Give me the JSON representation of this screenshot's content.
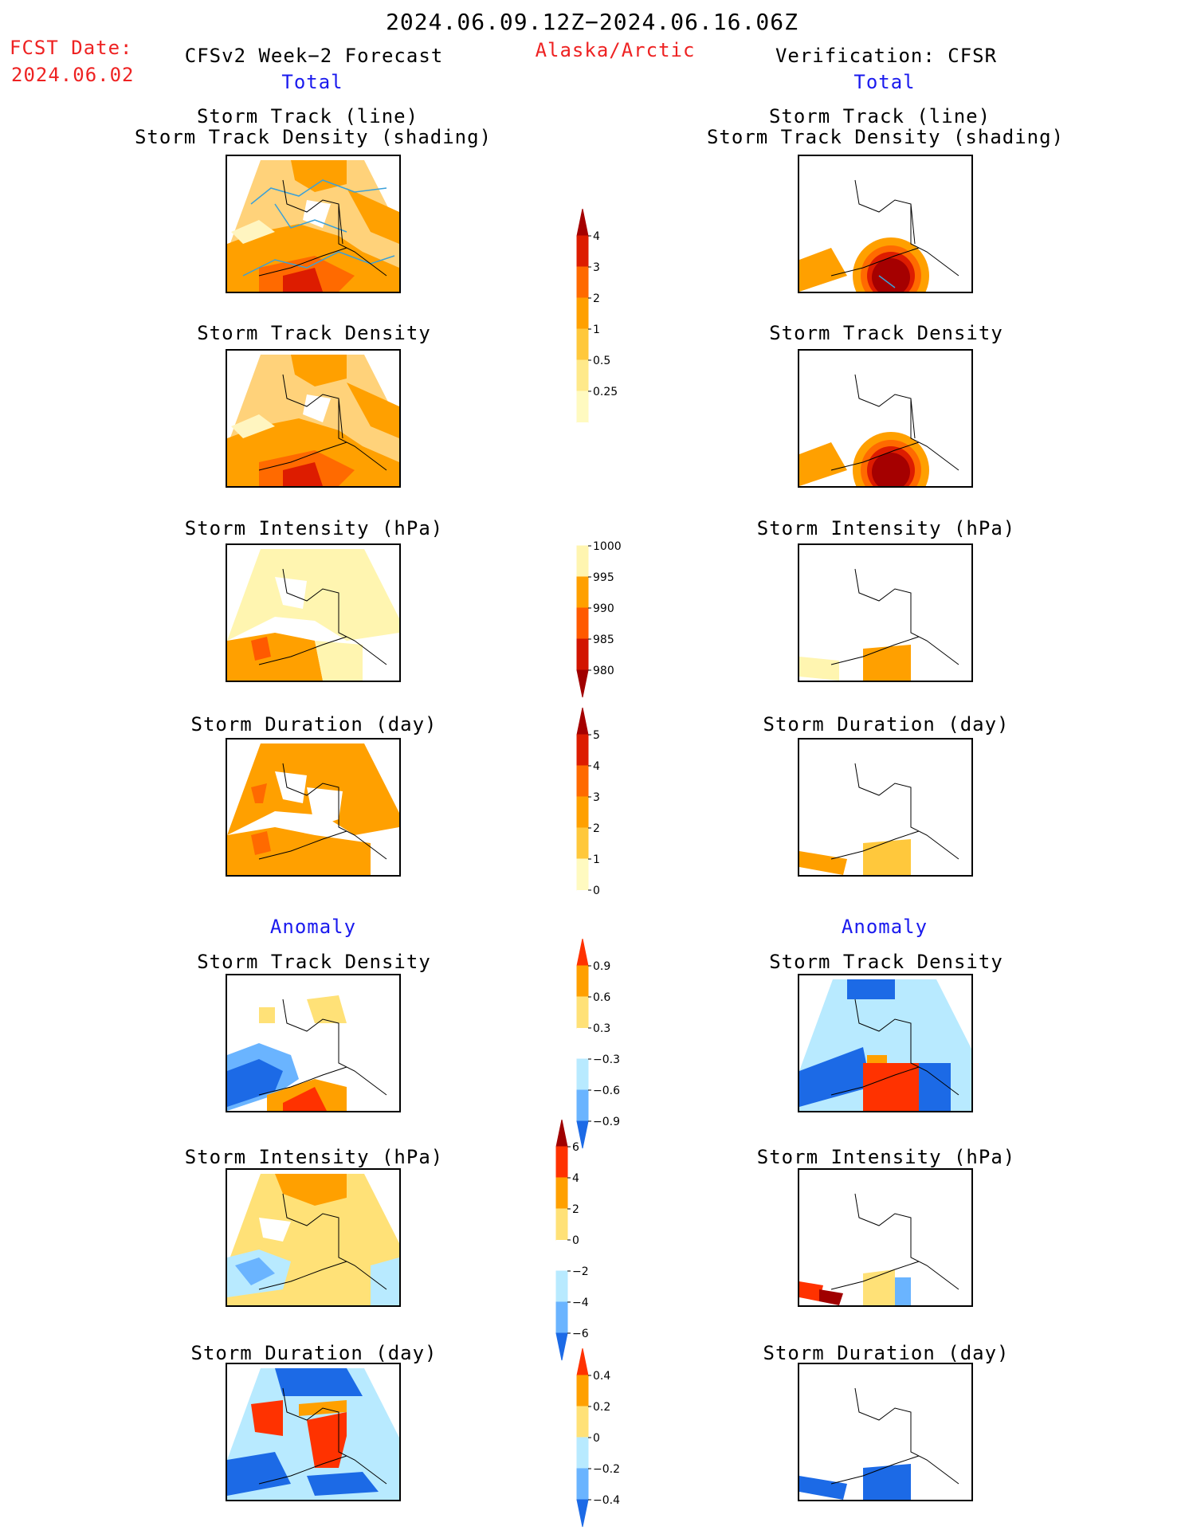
{
  "header": {
    "period": "2024.06.09.12Z−2024.06.16.06Z",
    "fcst_label": "FCST Date:",
    "fcst_date": "2024.06.02",
    "forecast_title": "CFSv2 Week−2 Forecast",
    "region": "Alaska/Arctic",
    "verification_title": "Verification: CFSR"
  },
  "sections": {
    "total_left": "Total",
    "total_right": "Total",
    "anomaly_left": "Anomaly",
    "anomaly_right": "Anomaly"
  },
  "panel_titles": {
    "track_line": "Storm Track (line)",
    "track_shading": "Storm Track Density (shading)",
    "density": "Storm Track Density",
    "intensity": "Storm Intensity (hPa)",
    "duration": "Storm Duration (day)",
    "anom_density": "Storm Track Density",
    "anom_intensity": "Storm Intensity (hPa)",
    "anom_duration": "Storm Duration (day)"
  },
  "chart_data": {
    "type": "heatmap",
    "colorbars": [
      {
        "name": "density_total",
        "labels": [
          "4",
          "3",
          "2",
          "1",
          "0.5",
          "0.25"
        ],
        "colors": [
          "#a50000",
          "#dd1c00",
          "#ff6a00",
          "#ffa000",
          "#ffc83c",
          "#ffe98a",
          "#fffac0",
          "#ffffff"
        ]
      },
      {
        "name": "intensity_total",
        "labels": [
          "1000",
          "995",
          "990",
          "985",
          "980"
        ],
        "colors": [
          "#ffffff",
          "#fff5b0",
          "#ffa000",
          "#ff5a00",
          "#d21400",
          "#a00000"
        ]
      },
      {
        "name": "duration_total",
        "labels": [
          "5",
          "4",
          "3",
          "2",
          "1",
          "0"
        ],
        "colors": [
          "#a50000",
          "#dd1c00",
          "#ff6a00",
          "#ffa000",
          "#ffc83c",
          "#fffac0",
          "#ffffff"
        ]
      },
      {
        "name": "density_anomaly",
        "labels": [
          "0.9",
          "0.6",
          "0.3",
          "−0.3",
          "−0.6",
          "−0.9"
        ],
        "colors": [
          "#ff3200",
          "#ffa000",
          "#ffe177",
          "#ffffff",
          "#b8eaff",
          "#6ab4ff",
          "#1c6ae6"
        ]
      },
      {
        "name": "intensity_anomaly",
        "labels": [
          "6",
          "4",
          "2",
          "0",
          "−2",
          "−4",
          "−6"
        ],
        "colors": [
          "#a00000",
          "#ff3200",
          "#ffa000",
          "#ffe177",
          "#ffffff",
          "#b8eaff",
          "#6ab4ff",
          "#1c6ae6"
        ]
      },
      {
        "name": "duration_anomaly",
        "labels": [
          "0.4",
          "0.2",
          "0",
          "−0.2",
          "−0.4"
        ],
        "colors": [
          "#ff3200",
          "#ffa000",
          "#ffe177",
          "#b8eaff",
          "#6ab4ff",
          "#1c6ae6"
        ]
      }
    ]
  }
}
